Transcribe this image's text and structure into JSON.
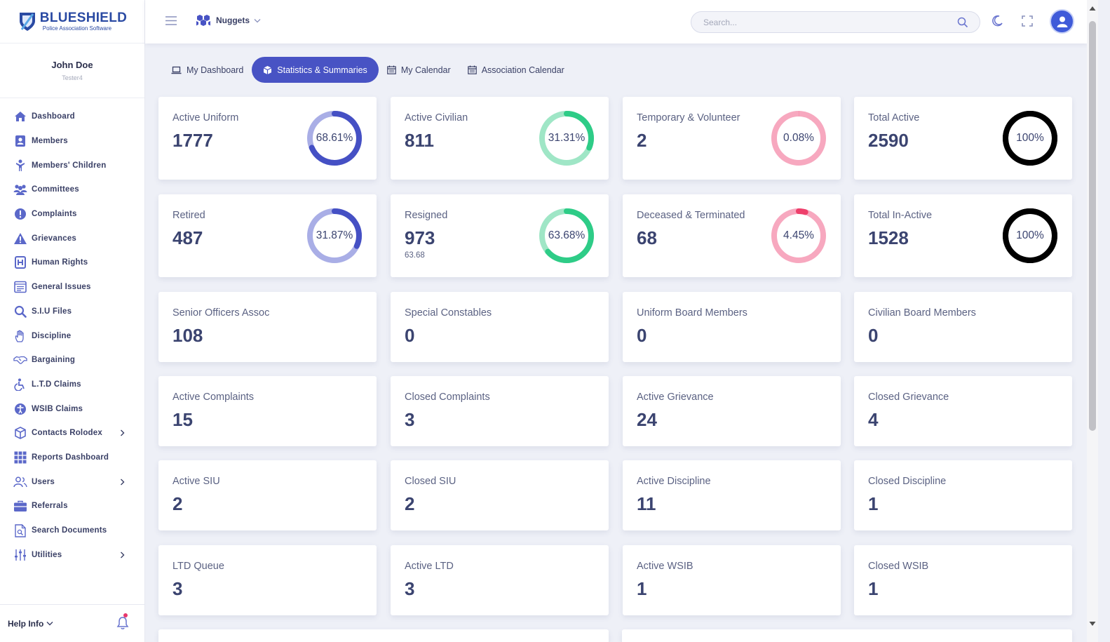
{
  "brand": {
    "name": "BLUESHIELD",
    "tagline": "Police Association Software"
  },
  "user": {
    "name": "John Doe",
    "role": "Tester4"
  },
  "sidebar": {
    "items": [
      {
        "label": "Dashboard",
        "icon": "home-icon"
      },
      {
        "label": "Members",
        "icon": "member-card-icon"
      },
      {
        "label": "Members' Children",
        "icon": "child-icon"
      },
      {
        "label": "Committees",
        "icon": "group-icon"
      },
      {
        "label": "Complaints",
        "icon": "exclamation-icon"
      },
      {
        "label": "Grievances",
        "icon": "warning-icon"
      },
      {
        "label": "Human Rights",
        "icon": "human-rights-icon"
      },
      {
        "label": "General Issues",
        "icon": "document-list-icon"
      },
      {
        "label": "S.I.U Files",
        "icon": "search-icon"
      },
      {
        "label": "Discipline",
        "icon": "hand-icon"
      },
      {
        "label": "Bargaining",
        "icon": "handshake-icon"
      },
      {
        "label": "L.T.D Claims",
        "icon": "wheelchair-icon"
      },
      {
        "label": "WSIB Claims",
        "icon": "accessibility-icon"
      },
      {
        "label": "Contacts Rolodex",
        "icon": "cube-icon",
        "has_submenu": true
      },
      {
        "label": "Reports Dashboard",
        "icon": "grid-icon"
      },
      {
        "label": "Users",
        "icon": "users-icon",
        "has_submenu": true
      },
      {
        "label": "Referrals",
        "icon": "briefcase-icon"
      },
      {
        "label": "Search Documents",
        "icon": "file-search-icon"
      },
      {
        "label": "Utilities",
        "icon": "sliders-icon",
        "has_submenu": true
      }
    ],
    "help_label": "Help Info"
  },
  "header": {
    "nuggets_label": "Nuggets",
    "search_placeholder": "Search..."
  },
  "tabs": [
    {
      "label": "My Dashboard",
      "icon": "laptop-icon",
      "active": false
    },
    {
      "label": "Statistics & Summaries",
      "icon": "cube-icon",
      "active": true
    },
    {
      "label": "My Calendar",
      "icon": "calendar-icon",
      "active": false
    },
    {
      "label": "Association Calendar",
      "icon": "calendar-icon",
      "active": false
    }
  ],
  "colors": {
    "accent": "#4853c4",
    "ring_blue": "#4550c4",
    "ring_blue_track": "#a9aee6",
    "ring_green": "#2ecc87",
    "ring_green_track": "#9fe6c6",
    "ring_pink": "#f7a8bf",
    "ring_pink_active": "#ee3f6b",
    "ring_black": "#000000"
  },
  "stats": [
    {
      "label": "Active Uniform",
      "value": "1777",
      "percent": 68.61,
      "percent_label": "68.61%",
      "ring": "blue"
    },
    {
      "label": "Active Civilian",
      "value": "811",
      "percent": 31.31,
      "percent_label": "31.31%",
      "ring": "green"
    },
    {
      "label": "Temporary & Volunteer",
      "value": "2",
      "percent": 0.08,
      "percent_label": "0.08%",
      "ring": "pink"
    },
    {
      "label": "Total Active",
      "value": "2590",
      "percent": 100,
      "percent_label": "100%",
      "ring": "black"
    },
    {
      "label": "Retired",
      "value": "487",
      "percent": 31.87,
      "percent_label": "31.87%",
      "ring": "blue"
    },
    {
      "label": "Resigned",
      "value": "973",
      "sub": "63.68",
      "percent": 63.68,
      "percent_label": "63.68%",
      "ring": "green"
    },
    {
      "label": "Deceased & Terminated",
      "value": "68",
      "percent": 4.45,
      "percent_label": "4.45%",
      "ring": "pink"
    },
    {
      "label": "Total In-Active",
      "value": "1528",
      "percent": 100,
      "percent_label": "100%",
      "ring": "black"
    },
    {
      "label": "Senior Officers Assoc",
      "value": "108"
    },
    {
      "label": "Special Constables",
      "value": "0"
    },
    {
      "label": "Uniform Board Members",
      "value": "0"
    },
    {
      "label": "Civilian Board Members",
      "value": "0"
    },
    {
      "label": "Active Complaints",
      "value": "15"
    },
    {
      "label": "Closed Complaints",
      "value": "3"
    },
    {
      "label": "Active Grievance",
      "value": "24"
    },
    {
      "label": "Closed Grievance",
      "value": "4"
    },
    {
      "label": "Active SIU",
      "value": "2"
    },
    {
      "label": "Closed SIU",
      "value": "2"
    },
    {
      "label": "Active Discipline",
      "value": "11"
    },
    {
      "label": "Closed Discipline",
      "value": "1"
    },
    {
      "label": "LTD Queue",
      "value": "3"
    },
    {
      "label": "Active LTD",
      "value": "3"
    },
    {
      "label": "Active WSIB",
      "value": "1"
    },
    {
      "label": "Closed WSIB",
      "value": "1"
    }
  ]
}
